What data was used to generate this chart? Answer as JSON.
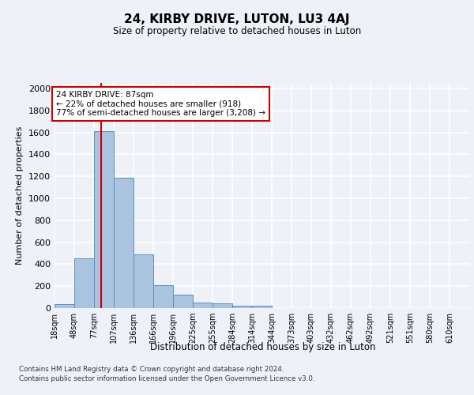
{
  "title": "24, KIRBY DRIVE, LUTON, LU3 4AJ",
  "subtitle": "Size of property relative to detached houses in Luton",
  "xlabel": "Distribution of detached houses by size in Luton",
  "ylabel": "Number of detached properties",
  "footer_line1": "Contains HM Land Registry data © Crown copyright and database right 2024.",
  "footer_line2": "Contains public sector information licensed under the Open Government Licence v3.0.",
  "bin_labels": [
    "18sqm",
    "48sqm",
    "77sqm",
    "107sqm",
    "136sqm",
    "166sqm",
    "196sqm",
    "225sqm",
    "255sqm",
    "284sqm",
    "314sqm",
    "344sqm",
    "373sqm",
    "403sqm",
    "432sqm",
    "462sqm",
    "492sqm",
    "521sqm",
    "551sqm",
    "580sqm",
    "610sqm"
  ],
  "bar_values": [
    35,
    455,
    1610,
    1190,
    490,
    210,
    125,
    50,
    40,
    25,
    18,
    0,
    0,
    0,
    0,
    0,
    0,
    0,
    0,
    0,
    0
  ],
  "bar_color": "#aac4e0",
  "bar_edgecolor": "#5b8fc2",
  "property_size": 87,
  "smaller_pct": 22,
  "smaller_count": 918,
  "larger_semi_pct": 77,
  "larger_semi_count": 3208,
  "vline_color": "#cc0000",
  "annotation_box_color": "#cc0000",
  "ylim": [
    0,
    2050
  ],
  "yticks": [
    0,
    200,
    400,
    600,
    800,
    1000,
    1200,
    1400,
    1600,
    1800,
    2000
  ],
  "background_color": "#eef2f8",
  "grid_color": "#ffffff"
}
